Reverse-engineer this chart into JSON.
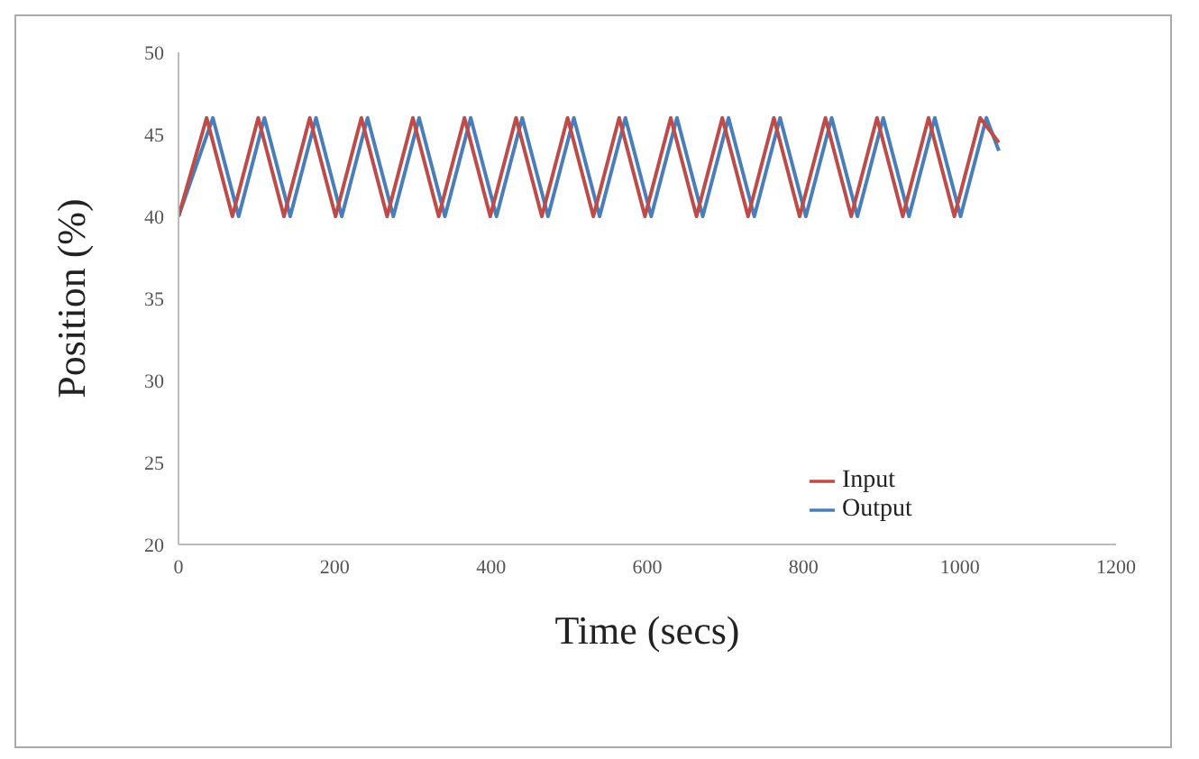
{
  "chart_data": {
    "type": "line",
    "xlabel": "Time (secs)",
    "ylabel": "Position (%)",
    "xlim": [
      0,
      1200
    ],
    "xticks": [
      0,
      200,
      400,
      600,
      800,
      1000,
      1200
    ],
    "ylim": [
      20,
      50
    ],
    "yticks": [
      20,
      25,
      30,
      35,
      40,
      45,
      50
    ],
    "grid": false,
    "legend": "right",
    "marker": "none",
    "series": [
      {
        "name": "Output",
        "color": "#4a7ebb",
        "x": [
          0,
          44,
          77,
          110,
          143,
          176,
          209,
          242,
          275,
          308,
          341,
          374,
          407,
          440,
          473,
          506,
          539,
          572,
          605,
          638,
          671,
          704,
          737,
          770,
          803,
          836,
          869,
          902,
          935,
          968,
          1001,
          1034,
          1050
        ],
        "values": [
          40,
          46,
          40,
          46,
          40,
          46,
          40,
          46,
          40,
          46,
          40,
          46,
          40,
          46,
          40,
          46,
          40,
          46,
          40,
          46,
          40,
          46,
          40,
          46,
          40,
          46,
          40,
          46,
          40,
          46,
          40,
          46,
          44
        ]
      },
      {
        "name": "Input",
        "color": "#be4b48",
        "x": [
          0,
          36,
          69,
          102,
          135,
          168,
          201,
          234,
          267,
          300,
          333,
          366,
          399,
          432,
          465,
          498,
          531,
          564,
          597,
          630,
          663,
          696,
          729,
          762,
          795,
          828,
          861,
          894,
          927,
          960,
          993,
          1026,
          1050
        ],
        "values": [
          40,
          46,
          40,
          46,
          40,
          46,
          40,
          46,
          40,
          46,
          40,
          46,
          40,
          46,
          40,
          46,
          40,
          46,
          40,
          46,
          40,
          46,
          40,
          46,
          40,
          46,
          40,
          46,
          40,
          46,
          40,
          46,
          44.5
        ]
      }
    ]
  }
}
